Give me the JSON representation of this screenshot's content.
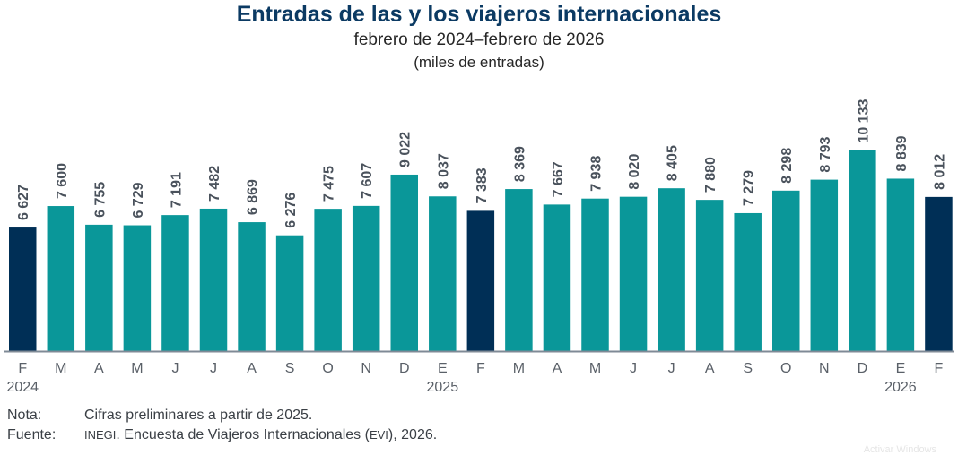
{
  "colors": {
    "highlight": "#002F56",
    "regular": "#0A9799",
    "label": "#4A525C",
    "axis": "#7F8A96",
    "tick": "#5A6068"
  },
  "chart_data": {
    "type": "bar",
    "title": "Entradas de las y los viajeros internacionales",
    "subtitle": "febrero de 2024–febrero de 2026",
    "unit": "(miles de entradas)",
    "xlabel": "",
    "ylabel": "",
    "ylim": [
      1035,
      10500
    ],
    "grid": false,
    "legend": "none",
    "categories": [
      "F",
      "M",
      "A",
      "M",
      "J",
      "J",
      "A",
      "S",
      "O",
      "N",
      "D",
      "E",
      "F",
      "M",
      "A",
      "M",
      "J",
      "J",
      "A",
      "S",
      "O",
      "N",
      "D",
      "E",
      "F"
    ],
    "year_labels": [
      {
        "index": 0,
        "label": "2024"
      },
      {
        "index": 11,
        "label": "2025"
      },
      {
        "index": 23,
        "label": "2026"
      }
    ],
    "values": [
      6627,
      7600,
      6755,
      6729,
      7191,
      7482,
      6869,
      6276,
      7475,
      7607,
      9022,
      8037,
      7383,
      8369,
      7667,
      7938,
      8020,
      8405,
      7880,
      7279,
      8298,
      8793,
      10133,
      8839,
      8012
    ],
    "value_labels": [
      "6 627",
      "7 600",
      "6 755",
      "6 729",
      "7 191",
      "7 482",
      "6 869",
      "6 276",
      "7 475",
      "7 607",
      "9 022",
      "8 037",
      "7 383",
      "8 369",
      "7 667",
      "7 938",
      "8 020",
      "8 405",
      "7 880",
      "7 279",
      "8 298",
      "8 793",
      "10 133",
      "8 839",
      "8 012"
    ],
    "highlighted_indices": [
      0,
      12,
      24
    ]
  },
  "notes": {
    "nota_label": "Nota:",
    "nota_text": "Cifras preliminares a partir de 2025.",
    "fuente_label": "Fuente:",
    "fuente_org": "INEGI",
    "fuente_text_1": ". Encuesta de Viajeros Internacionales (",
    "fuente_abbr": "EVI",
    "fuente_text_2": "), 2026."
  },
  "watermark": "Activar Windows"
}
